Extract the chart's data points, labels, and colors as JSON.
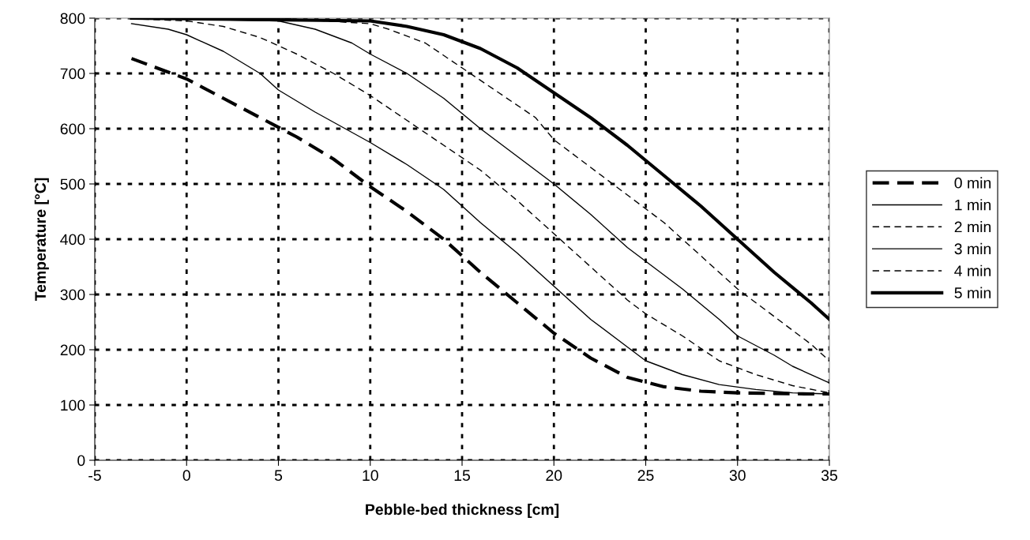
{
  "chart_data": {
    "type": "line",
    "xlabel": "Pebble-bed thickness [cm]",
    "ylabel": "Temperature [°C]",
    "xlim": [
      -5,
      35
    ],
    "xticks": [
      -5,
      0,
      5,
      10,
      15,
      20,
      25,
      30,
      35
    ],
    "ylim": [
      0,
      800
    ],
    "yticks": [
      0,
      100,
      200,
      300,
      400,
      500,
      600,
      700,
      800
    ],
    "grid": true,
    "legend": "right",
    "marker": "none",
    "series": [
      {
        "name": "0 min",
        "color": "#000000",
        "line_style": "dashed",
        "x": [
          -3,
          0,
          2,
          4,
          6,
          8,
          10,
          12,
          14,
          16,
          18,
          20,
          22,
          24,
          26,
          28,
          30,
          32,
          34,
          35
        ],
        "values": [
          727,
          690,
          655,
          620,
          585,
          545,
          495,
          450,
          400,
          340,
          285,
          230,
          185,
          150,
          133,
          125,
          122,
          121,
          120,
          120
        ]
      },
      {
        "name": "1 min",
        "color": "#000000",
        "line_style": "solid",
        "x": [
          -3,
          -1,
          0,
          2,
          4,
          5,
          7,
          10,
          12,
          14,
          16,
          18,
          20,
          22,
          24,
          25,
          27,
          29,
          31,
          33,
          35
        ],
        "values": [
          790,
          780,
          770,
          740,
          700,
          670,
          630,
          575,
          535,
          490,
          430,
          375,
          315,
          255,
          205,
          180,
          155,
          137,
          128,
          122,
          120
        ]
      },
      {
        "name": "2 min",
        "color": "#000000",
        "line_style": "dashed",
        "x": [
          -3,
          0,
          2,
          4,
          5,
          6,
          8,
          10,
          12,
          14,
          16,
          18,
          20,
          22,
          24,
          25,
          27,
          29,
          31,
          33,
          35
        ],
        "values": [
          799,
          795,
          785,
          765,
          750,
          735,
          700,
          660,
          615,
          570,
          525,
          470,
          410,
          350,
          290,
          265,
          225,
          180,
          155,
          135,
          122
        ]
      },
      {
        "name": "3 min",
        "color": "#000000",
        "line_style": "solid",
        "x": [
          -3,
          5,
          7,
          9,
          10,
          12,
          14,
          16,
          18,
          20,
          22,
          24,
          25,
          27,
          29,
          30,
          32,
          33,
          35
        ],
        "values": [
          800,
          795,
          780,
          755,
          735,
          700,
          655,
          600,
          550,
          500,
          445,
          385,
          360,
          310,
          255,
          225,
          190,
          170,
          140
        ]
      },
      {
        "name": "4 min",
        "color": "#000000",
        "line_style": "dashed",
        "x": [
          -3,
          5,
          10,
          11,
          13,
          15,
          17,
          19,
          20,
          22,
          24,
          26,
          28,
          30,
          32,
          34,
          35
        ],
        "values": [
          800,
          800,
          790,
          780,
          755,
          710,
          665,
          620,
          580,
          530,
          480,
          430,
          370,
          310,
          260,
          210,
          180
        ]
      },
      {
        "name": "5 min",
        "color": "#000000",
        "line_style": "solid",
        "x": [
          -3,
          10,
          12,
          14,
          16,
          18,
          20,
          22,
          24,
          26,
          28,
          30,
          32,
          34,
          35
        ],
        "values": [
          800,
          795,
          785,
          770,
          745,
          710,
          665,
          620,
          570,
          515,
          460,
          400,
          340,
          285,
          255
        ]
      }
    ]
  }
}
